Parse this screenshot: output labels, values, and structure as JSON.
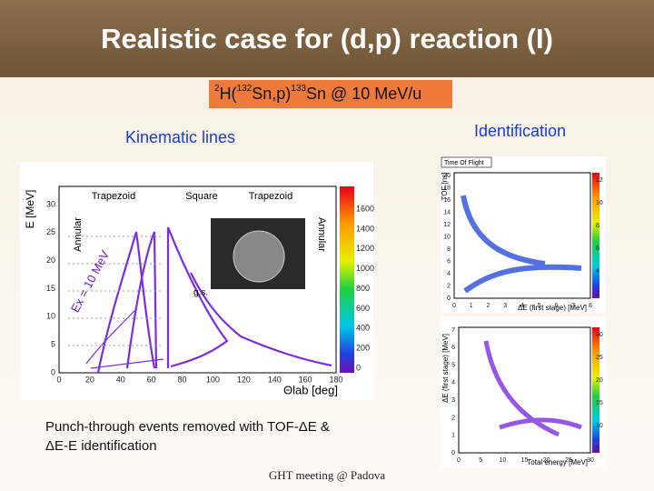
{
  "header": {
    "title": "Realistic case for (d,p) reaction (I)"
  },
  "reaction": {
    "parts": [
      "2",
      "H(",
      "132",
      "Sn,p)",
      "133",
      "Sn @ 10 MeV/u"
    ]
  },
  "left_heading": "Kinematic lines",
  "right_heading": "Identification",
  "kinematics_plot": {
    "y_label": "E [MeV]",
    "x_label": "Θlab [deg]",
    "xticks": [
      0,
      20,
      40,
      60,
      80,
      100,
      120,
      140,
      160,
      180
    ],
    "yticks": [
      0,
      5,
      10,
      15,
      20,
      25,
      30
    ],
    "zticks": [
      0,
      200,
      400,
      600,
      800,
      1000,
      1200,
      1400,
      1600
    ],
    "regions": [
      "Trapezoid",
      "Square",
      "Trapezoid"
    ],
    "side_labels": [
      "Annular",
      "Annular"
    ],
    "excitation_label": "Ex = 10 MeV",
    "gs_label": "g.s."
  },
  "tof_plot": {
    "title": "Time Of Flight",
    "y_label": "TOF [ns]",
    "x_label": "ΔE (first stage) [MeV]",
    "xticks": [
      0,
      1,
      2,
      3,
      4,
      5,
      6,
      7,
      8
    ],
    "yticks": [
      0,
      2,
      4,
      6,
      8,
      10,
      12,
      14,
      16,
      18,
      20
    ],
    "zticks": [
      2,
      4,
      6,
      8,
      10,
      12
    ]
  },
  "de_e_plot": {
    "y_label": "ΔE (first stage) [MeV]",
    "x_label": "Total energy [MeV]",
    "xticks": [
      0,
      5,
      10,
      15,
      20,
      25,
      30
    ],
    "yticks": [
      0,
      1,
      2,
      3,
      4,
      5,
      6,
      7
    ],
    "zticks": [
      5,
      10,
      15,
      20,
      25,
      30
    ]
  },
  "notes": [
    "Punch-through events removed with TOF-ΔE &",
    "ΔE-E identification"
  ],
  "footer": "GHT meeting @ Padova"
}
